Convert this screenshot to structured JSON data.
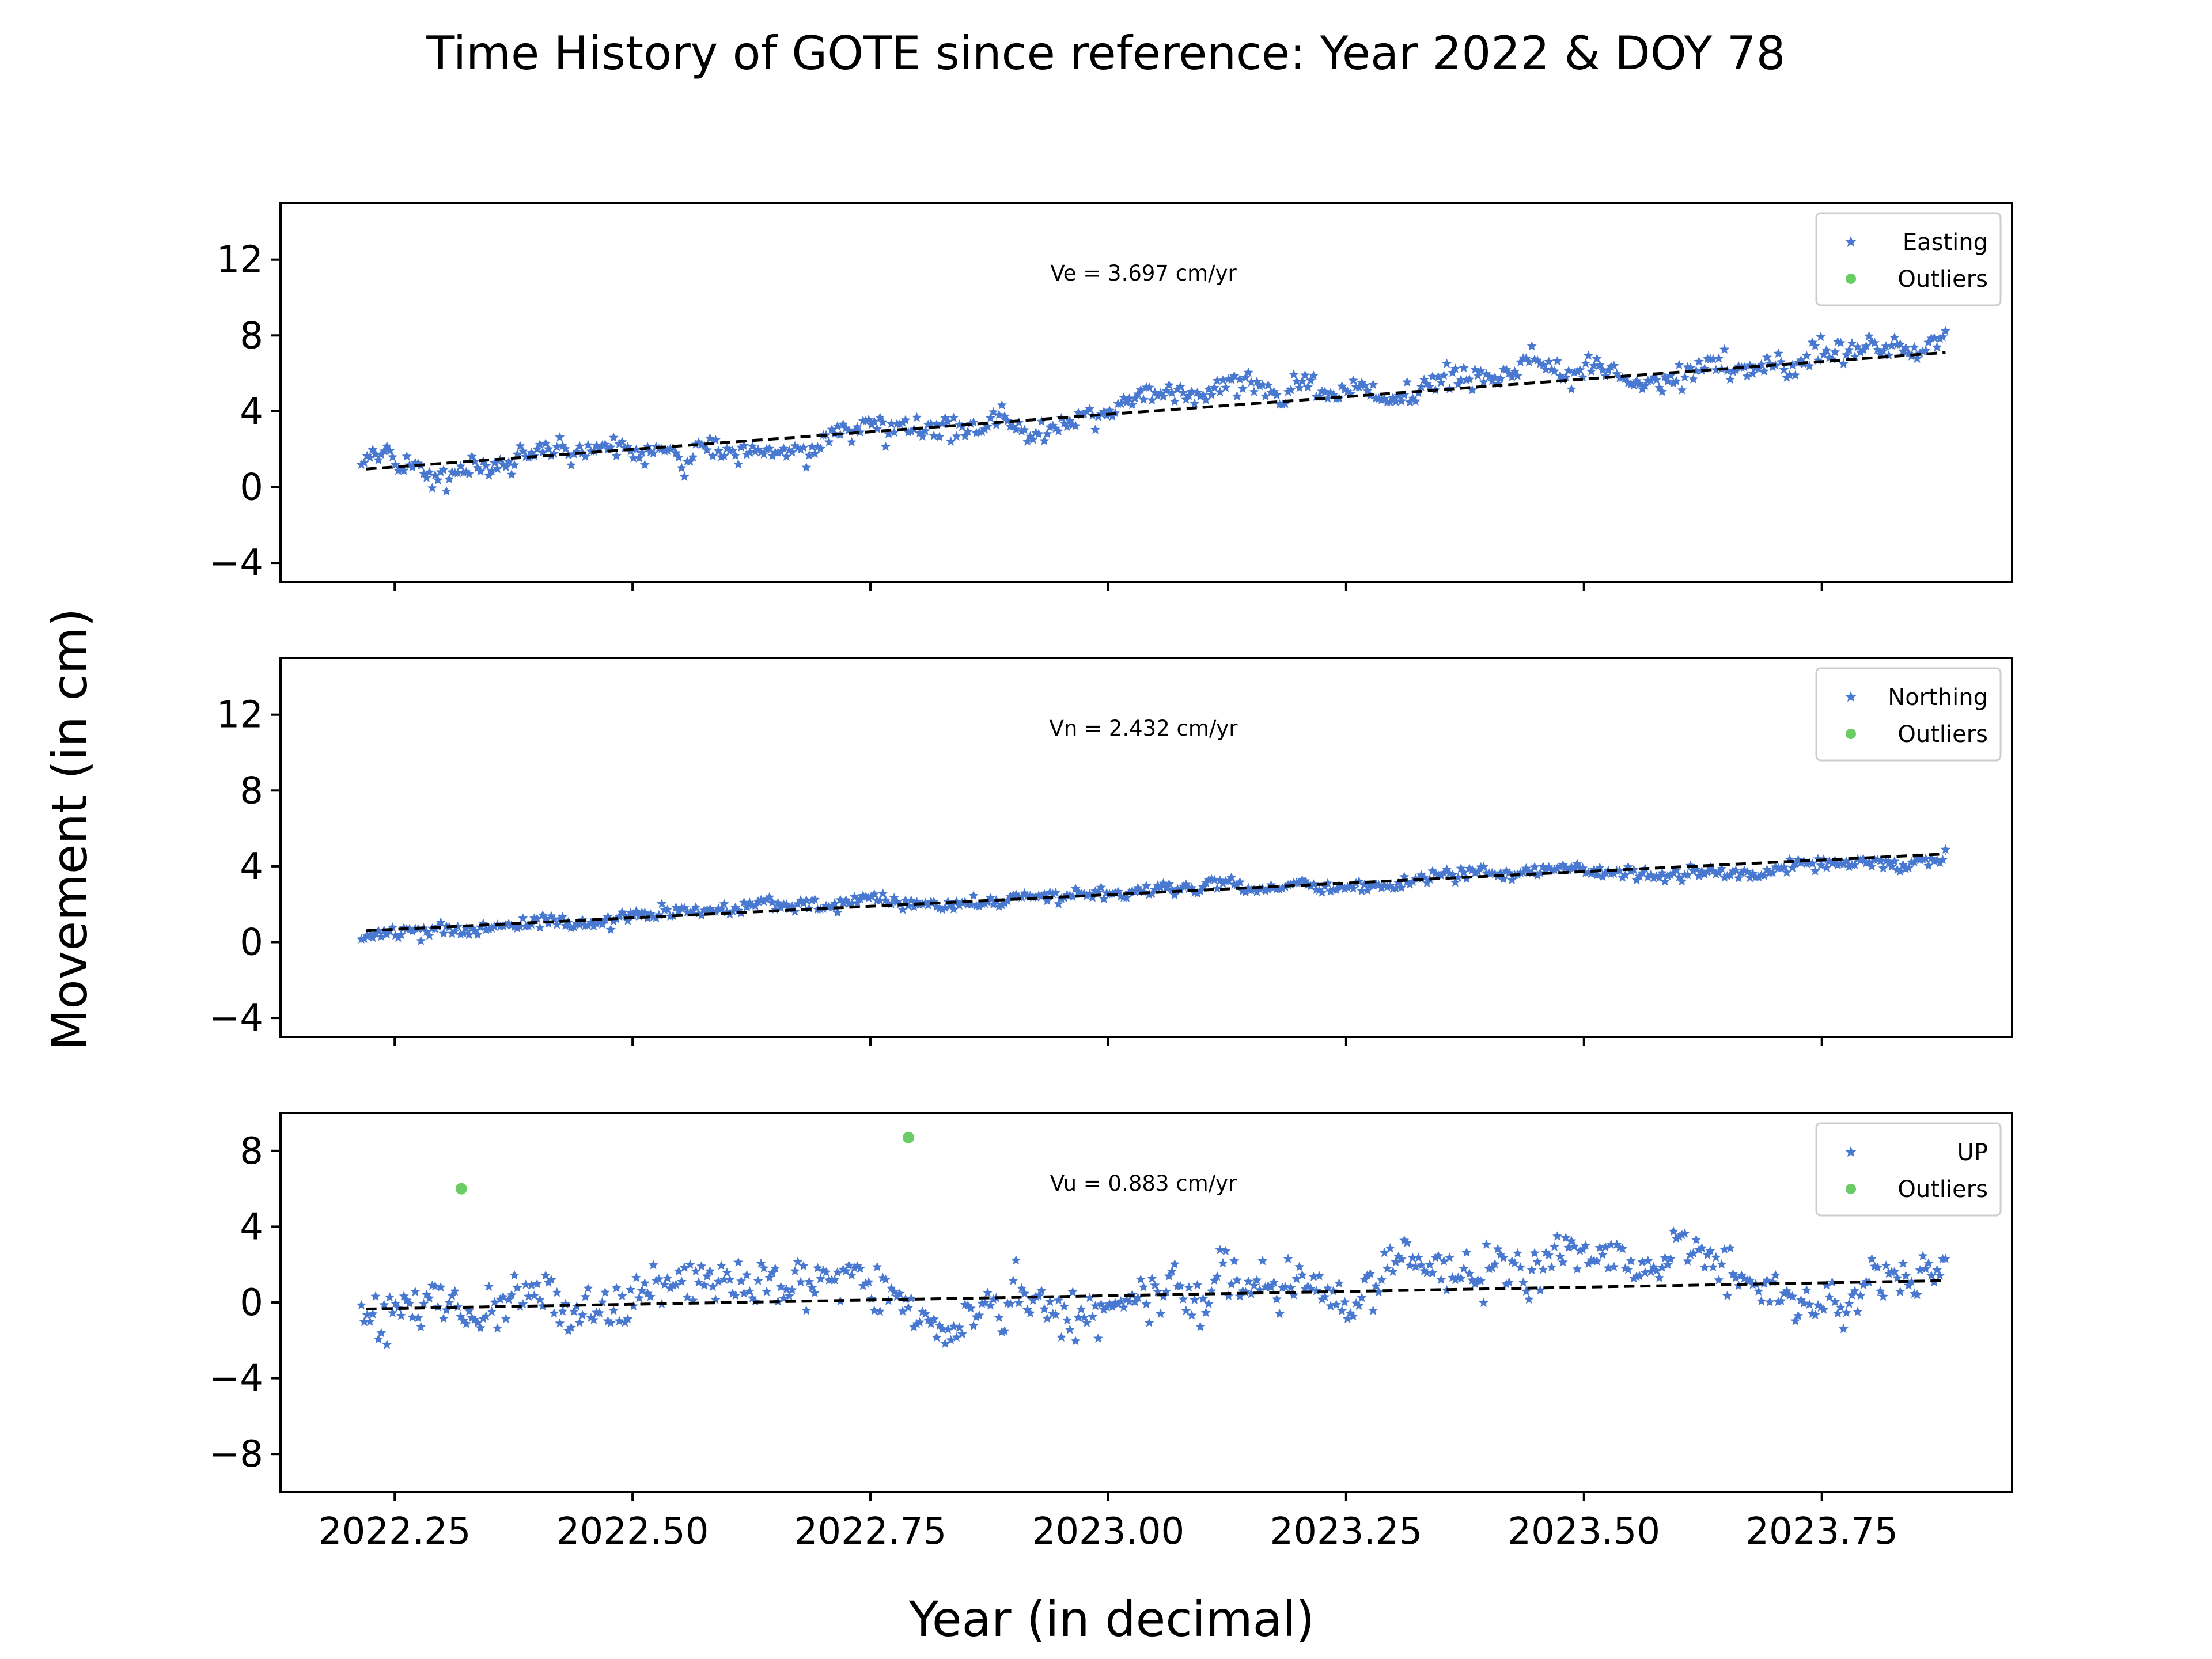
{
  "figure": {
    "suptitle": "Time History of GOTE since reference: Year 2022 & DOY 78",
    "xlabel": "Year (in decimal)",
    "ylabel": "Movement (in cm)"
  },
  "colors": {
    "series": "#4878d0",
    "outliers": "#6acc64",
    "trend": "#000000"
  },
  "chart_data": [
    {
      "type": "scatter",
      "component": "Easting",
      "annotation": "Ve =  3.697 cm/yr",
      "legend": [
        "Easting",
        "Outliers"
      ],
      "legend_position": "top-right",
      "xlim": [
        2022.13,
        2023.95
      ],
      "ylim": [
        -5,
        15
      ],
      "yticks": [
        -4,
        0,
        4,
        8,
        12
      ],
      "xticks": [
        2022.25,
        2022.5,
        2022.75,
        2023.0,
        2023.25,
        2023.5,
        2023.75
      ],
      "trend": {
        "x": [
          2022.22,
          2023.88
        ],
        "y": [
          0.95,
          7.1
        ]
      },
      "data_summary": {
        "x_start": 2022.215,
        "x_end": 2023.88,
        "y_start": 0.3,
        "y_end": 7.3
      },
      "noise": 0.55,
      "outliers": []
    },
    {
      "type": "scatter",
      "component": "Northing",
      "annotation": "Vn =  2.432 cm/yr",
      "legend": [
        "Northing",
        "Outliers"
      ],
      "legend_position": "top-right",
      "xlim": [
        2022.13,
        2023.95
      ],
      "ylim": [
        -5,
        15
      ],
      "yticks": [
        -4,
        0,
        4,
        8,
        12
      ],
      "xticks": [
        2022.25,
        2022.5,
        2022.75,
        2023.0,
        2023.25,
        2023.5,
        2023.75
      ],
      "trend": {
        "x": [
          2022.22,
          2023.88
        ],
        "y": [
          0.6,
          4.65
        ]
      },
      "data_summary": {
        "x_start": 2022.215,
        "x_end": 2023.88,
        "y_start": 0.2,
        "y_end": 5.1
      },
      "noise": 0.3,
      "outliers": []
    },
    {
      "type": "scatter",
      "component": "UP",
      "annotation": "Vu =  0.883 cm/yr",
      "legend": [
        "UP",
        "Outliers"
      ],
      "legend_position": "top-right",
      "xlim": [
        2022.13,
        2023.95
      ],
      "ylim": [
        -10,
        10
      ],
      "yticks": [
        -8,
        -4,
        0,
        4,
        8
      ],
      "xticks": [
        2022.25,
        2022.5,
        2022.75,
        2023.0,
        2023.25,
        2023.5,
        2023.75
      ],
      "xticklabels": [
        "2022.25",
        "2022.50",
        "2022.75",
        "2023.00",
        "2023.25",
        "2023.50",
        "2023.75"
      ],
      "trend": {
        "x": [
          2022.22,
          2023.88
        ],
        "y": [
          -0.35,
          1.15
        ]
      },
      "data_summary": {
        "x_start": 2022.215,
        "x_end": 2023.88,
        "y_start": 0.0,
        "y_end": 1.0
      },
      "noise": 1.0,
      "outliers": [
        {
          "x": 2022.32,
          "y": 6.0
        },
        {
          "x": 2022.79,
          "y": 8.7
        }
      ]
    }
  ]
}
